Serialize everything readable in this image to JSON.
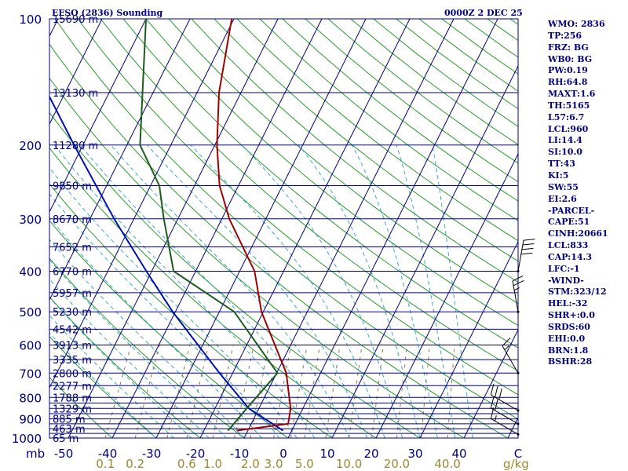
{
  "title_left": "EFSO (2836) Sounding",
  "title_right": "0000Z  2 DEC 25",
  "pressure_unit": "mb",
  "mixing_ratio_unit": "g/kg",
  "colors": {
    "frame": "#00007f",
    "isobar": "#00007f",
    "isotherm": "#00007f",
    "dry_adiabat": "#2a9a2a",
    "moist_adiabat": "#38a8c8",
    "mixing_ratio": "#8a7a40",
    "temperature": "#a00000",
    "dewpoint": "#1f5a1f",
    "parcel": "#0010b0",
    "wind": "#000000"
  },
  "side_panel": [
    "WMO: 2836",
    "TP:256",
    "FRZ: BG",
    "WB0: BG",
    "PW:0.19",
    "RH:64.8",
    "MAXT:1.6",
    "TH:5165",
    "L57:6.7",
    "LCL:960",
    "LI:14.4",
    "SI:10.0",
    "TT:43",
    "KI:5",
    "SW:55",
    "EI:2.6",
    "-PARCEL-",
    "CAPE:51",
    "CINH:20661",
    "LCL:833",
    "CAP:14.3",
    "LFC:-1",
    "-WIND-",
    "STM:323/12",
    "HEL:-32",
    "SHR+:0.0",
    "SRDS:60",
    "EHI:0.0",
    "BRN:1.8",
    "BSHR:28"
  ],
  "chart_data": {
    "type": "skew-t log-p sounding",
    "title": "EFSO (2836) Sounding",
    "valid_time": "0000Z  2 DEC 25",
    "pressure_axis": {
      "unit": "mb",
      "range": [
        1000,
        100
      ],
      "ticks": [
        100,
        200,
        300,
        400,
        500,
        600,
        700,
        800,
        900,
        1000
      ],
      "tick_labels": [
        "100",
        "200",
        "300",
        "400",
        "500",
        "600",
        "700",
        "800",
        "900",
        "1000"
      ]
    },
    "temperature_axis": {
      "unit": "C",
      "ticks": [
        -50,
        -40,
        -30,
        -20,
        -10,
        0,
        10,
        20,
        30,
        40
      ],
      "tick_labels": [
        "-50",
        "-40",
        "-30",
        "-20",
        "-10",
        "0",
        "10",
        "20",
        "30",
        "40"
      ],
      "end_label": "C"
    },
    "mixing_ratio_labels": {
      "unit": "g/kg",
      "values": [
        0.1,
        0.2,
        0.6,
        1.0,
        2.0,
        3.0,
        5.0,
        10.0,
        20.0,
        40.0
      ],
      "labels": [
        "0.1",
        "0.2",
        "0.6",
        "1.0",
        "2.0",
        "3.0",
        "5.0",
        "10.0",
        "20.0",
        "40.0"
      ]
    },
    "height_levels": [
      {
        "p": 100,
        "label": "15690 m"
      },
      {
        "p": 150,
        "label": "13130 m"
      },
      {
        "p": 200,
        "label": "11280 m"
      },
      {
        "p": 250,
        "label": "9850 m"
      },
      {
        "p": 300,
        "label": "8670 m"
      },
      {
        "p": 350,
        "label": "7652 m"
      },
      {
        "p": 400,
        "label": "6770 m"
      },
      {
        "p": 450,
        "label": "5957 m"
      },
      {
        "p": 500,
        "label": "5230 m"
      },
      {
        "p": 550,
        "label": "4542 m"
      },
      {
        "p": 600,
        "label": "3913 m"
      },
      {
        "p": 650,
        "label": "3335 m"
      },
      {
        "p": 700,
        "label": "2800 m"
      },
      {
        "p": 750,
        "label": "2277 m"
      },
      {
        "p": 800,
        "label": "1788 m"
      },
      {
        "p": 850,
        "label": "1329 m"
      },
      {
        "p": 900,
        "label": "885 m"
      },
      {
        "p": 950,
        "label": "463 m"
      },
      {
        "p": 1000,
        "label": "65 m"
      }
    ],
    "temperature_profile": [
      {
        "p": 960,
        "t": -12.5
      },
      {
        "p": 925,
        "t": -1.6
      },
      {
        "p": 850,
        "t": -2.8
      },
      {
        "p": 700,
        "t": -7.8
      },
      {
        "p": 500,
        "t": -20.4
      },
      {
        "p": 400,
        "t": -26.6
      },
      {
        "p": 300,
        "t": -38.3
      },
      {
        "p": 250,
        "t": -44.3
      },
      {
        "p": 200,
        "t": -49.5
      },
      {
        "p": 150,
        "t": -55.0
      },
      {
        "p": 100,
        "t": -60.5
      }
    ],
    "dewpoint_profile": [
      {
        "p": 960,
        "td": -14.5
      },
      {
        "p": 850,
        "td": -12.8
      },
      {
        "p": 700,
        "td": -9.8
      },
      {
        "p": 500,
        "td": -26.6
      },
      {
        "p": 400,
        "td": -45.0
      },
      {
        "p": 300,
        "td": -53.2
      },
      {
        "p": 250,
        "td": -58.0
      },
      {
        "p": 200,
        "td": -67.0
      },
      {
        "p": 100,
        "td": -80.0
      }
    ],
    "parcel_profile": [
      {
        "p": 960,
        "t": -2.0
      },
      {
        "p": 850,
        "t": -12.3
      },
      {
        "p": 700,
        "t": -23.0
      },
      {
        "p": 500,
        "t": -40.6
      },
      {
        "p": 400,
        "t": -51.2
      },
      {
        "p": 300,
        "t": -64.5
      },
      {
        "p": 200,
        "t": -82.0
      },
      {
        "p": 100,
        "t": -111.0
      }
    ],
    "winds": [
      {
        "p": 980,
        "dir": 300,
        "kt": 15
      },
      {
        "p": 925,
        "dir": 300,
        "kt": 20
      },
      {
        "p": 860,
        "dir": 300,
        "kt": 30
      },
      {
        "p": 700,
        "dir": 330,
        "kt": 15
      },
      {
        "p": 500,
        "dir": 350,
        "kt": 25
      },
      {
        "p": 400,
        "dir": 10,
        "kt": 40
      }
    ]
  }
}
